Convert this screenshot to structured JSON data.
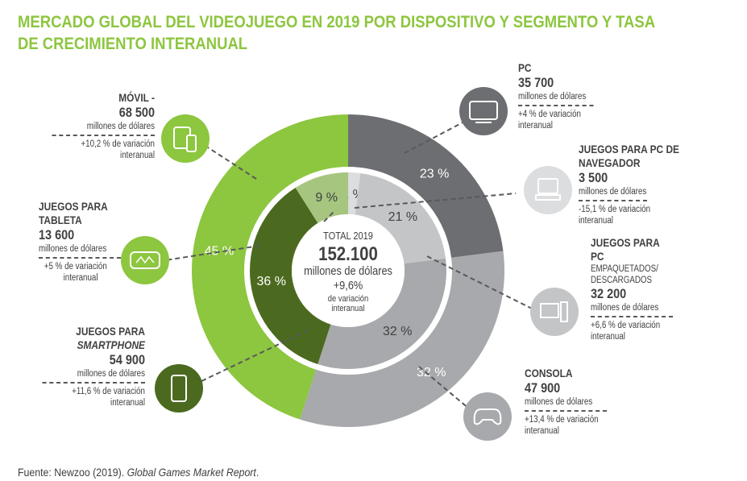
{
  "title": "MERCADO GLOBAL DEL VIDEOJUEGO EN 2019 POR DISPOSITIVO Y SEGMENTO Y TASA DE CRECIMIENTO INTERANUAL",
  "center": {
    "label": "TOTAL 2019",
    "value": "152.100",
    "unit": "millones de dólares",
    "growth": "+9,6%",
    "growth_label1": "de variación",
    "growth_label2": "interanual"
  },
  "source_prefix": "Fuente: Newzoo (2019). ",
  "source_title": "Global Games Market Report",
  "chart_data": {
    "type": "donut",
    "outer": [
      {
        "name": "PC",
        "percent": 23,
        "label": "23 %",
        "color": "#6d6e71"
      },
      {
        "name": "Consola",
        "percent": 32,
        "label": "32 %",
        "color": "#a7a9ac"
      },
      {
        "name": "Móvil",
        "percent": 45,
        "label": "45 %",
        "color": "#8dc63f"
      }
    ],
    "inner": [
      {
        "name": "Juegos para PC de navegador",
        "percent": 2,
        "label": "2 %",
        "color": "#dcdddf"
      },
      {
        "name": "Juegos para PC empaquetados/descargados",
        "percent": 21,
        "label": "21 %",
        "color": "#c4c5c7"
      },
      {
        "name": "Consola",
        "percent": 32,
        "label": "32 %",
        "color": "#a7a9ac"
      },
      {
        "name": "Juegos para smartphone",
        "percent": 36,
        "label": "36 %",
        "color": "#4b6a1f"
      },
      {
        "name": "Juegos para tableta",
        "percent": 9,
        "label": "9 %",
        "color": "#a6c57f"
      }
    ]
  },
  "segments": {
    "movil": {
      "name": "MÓVIL -",
      "value": "68 500",
      "unit": "millones de dólares",
      "growth1": "+10,2 % de variación",
      "growth2": "interanual",
      "icon": "mobile-tablet-icon"
    },
    "tableta": {
      "name1": "JUEGOS PARA",
      "name2": "TABLETA",
      "value": "13 600",
      "unit": "millones de dólares",
      "growth1": "+5 % de variación",
      "growth2": "interanual",
      "icon": "tablet-game-icon"
    },
    "smartphone": {
      "name1": "JUEGOS PARA",
      "name2": "SMARTPHONE",
      "value": "54 900",
      "unit": "millones de dólares",
      "growth1": "+11,6 % de variación",
      "growth2": "interanual",
      "icon": "smartphone-icon"
    },
    "pc": {
      "name": "PC",
      "value": "35 700",
      "unit": "millones de dólares",
      "growth1": "+4 % de variación",
      "growth2": "interanual",
      "icon": "monitor-icon"
    },
    "navegador": {
      "name": "JUEGOS PARA PC DE NAVEGADOR",
      "value": "3 500",
      "unit": "millones de dólares",
      "growth1": "-15,1 % de variación",
      "growth2": "interanual",
      "icon": "laptop-icon"
    },
    "empaquetados": {
      "name1": "JUEGOS PARA PC",
      "name2": "EMPAQUETADOS/",
      "name3": "DESCARGADOS",
      "value": "32 200",
      "unit": "millones de dólares",
      "growth1": "+6,6 % de variación",
      "growth2": "interanual",
      "icon": "desktop-computer-icon"
    },
    "consola": {
      "name": "CONSOLA",
      "value": "47 900",
      "unit": "millones de dólares",
      "growth1": "+13,4 % de variación",
      "growth2": "interanual",
      "icon": "gamepad-icon"
    }
  }
}
